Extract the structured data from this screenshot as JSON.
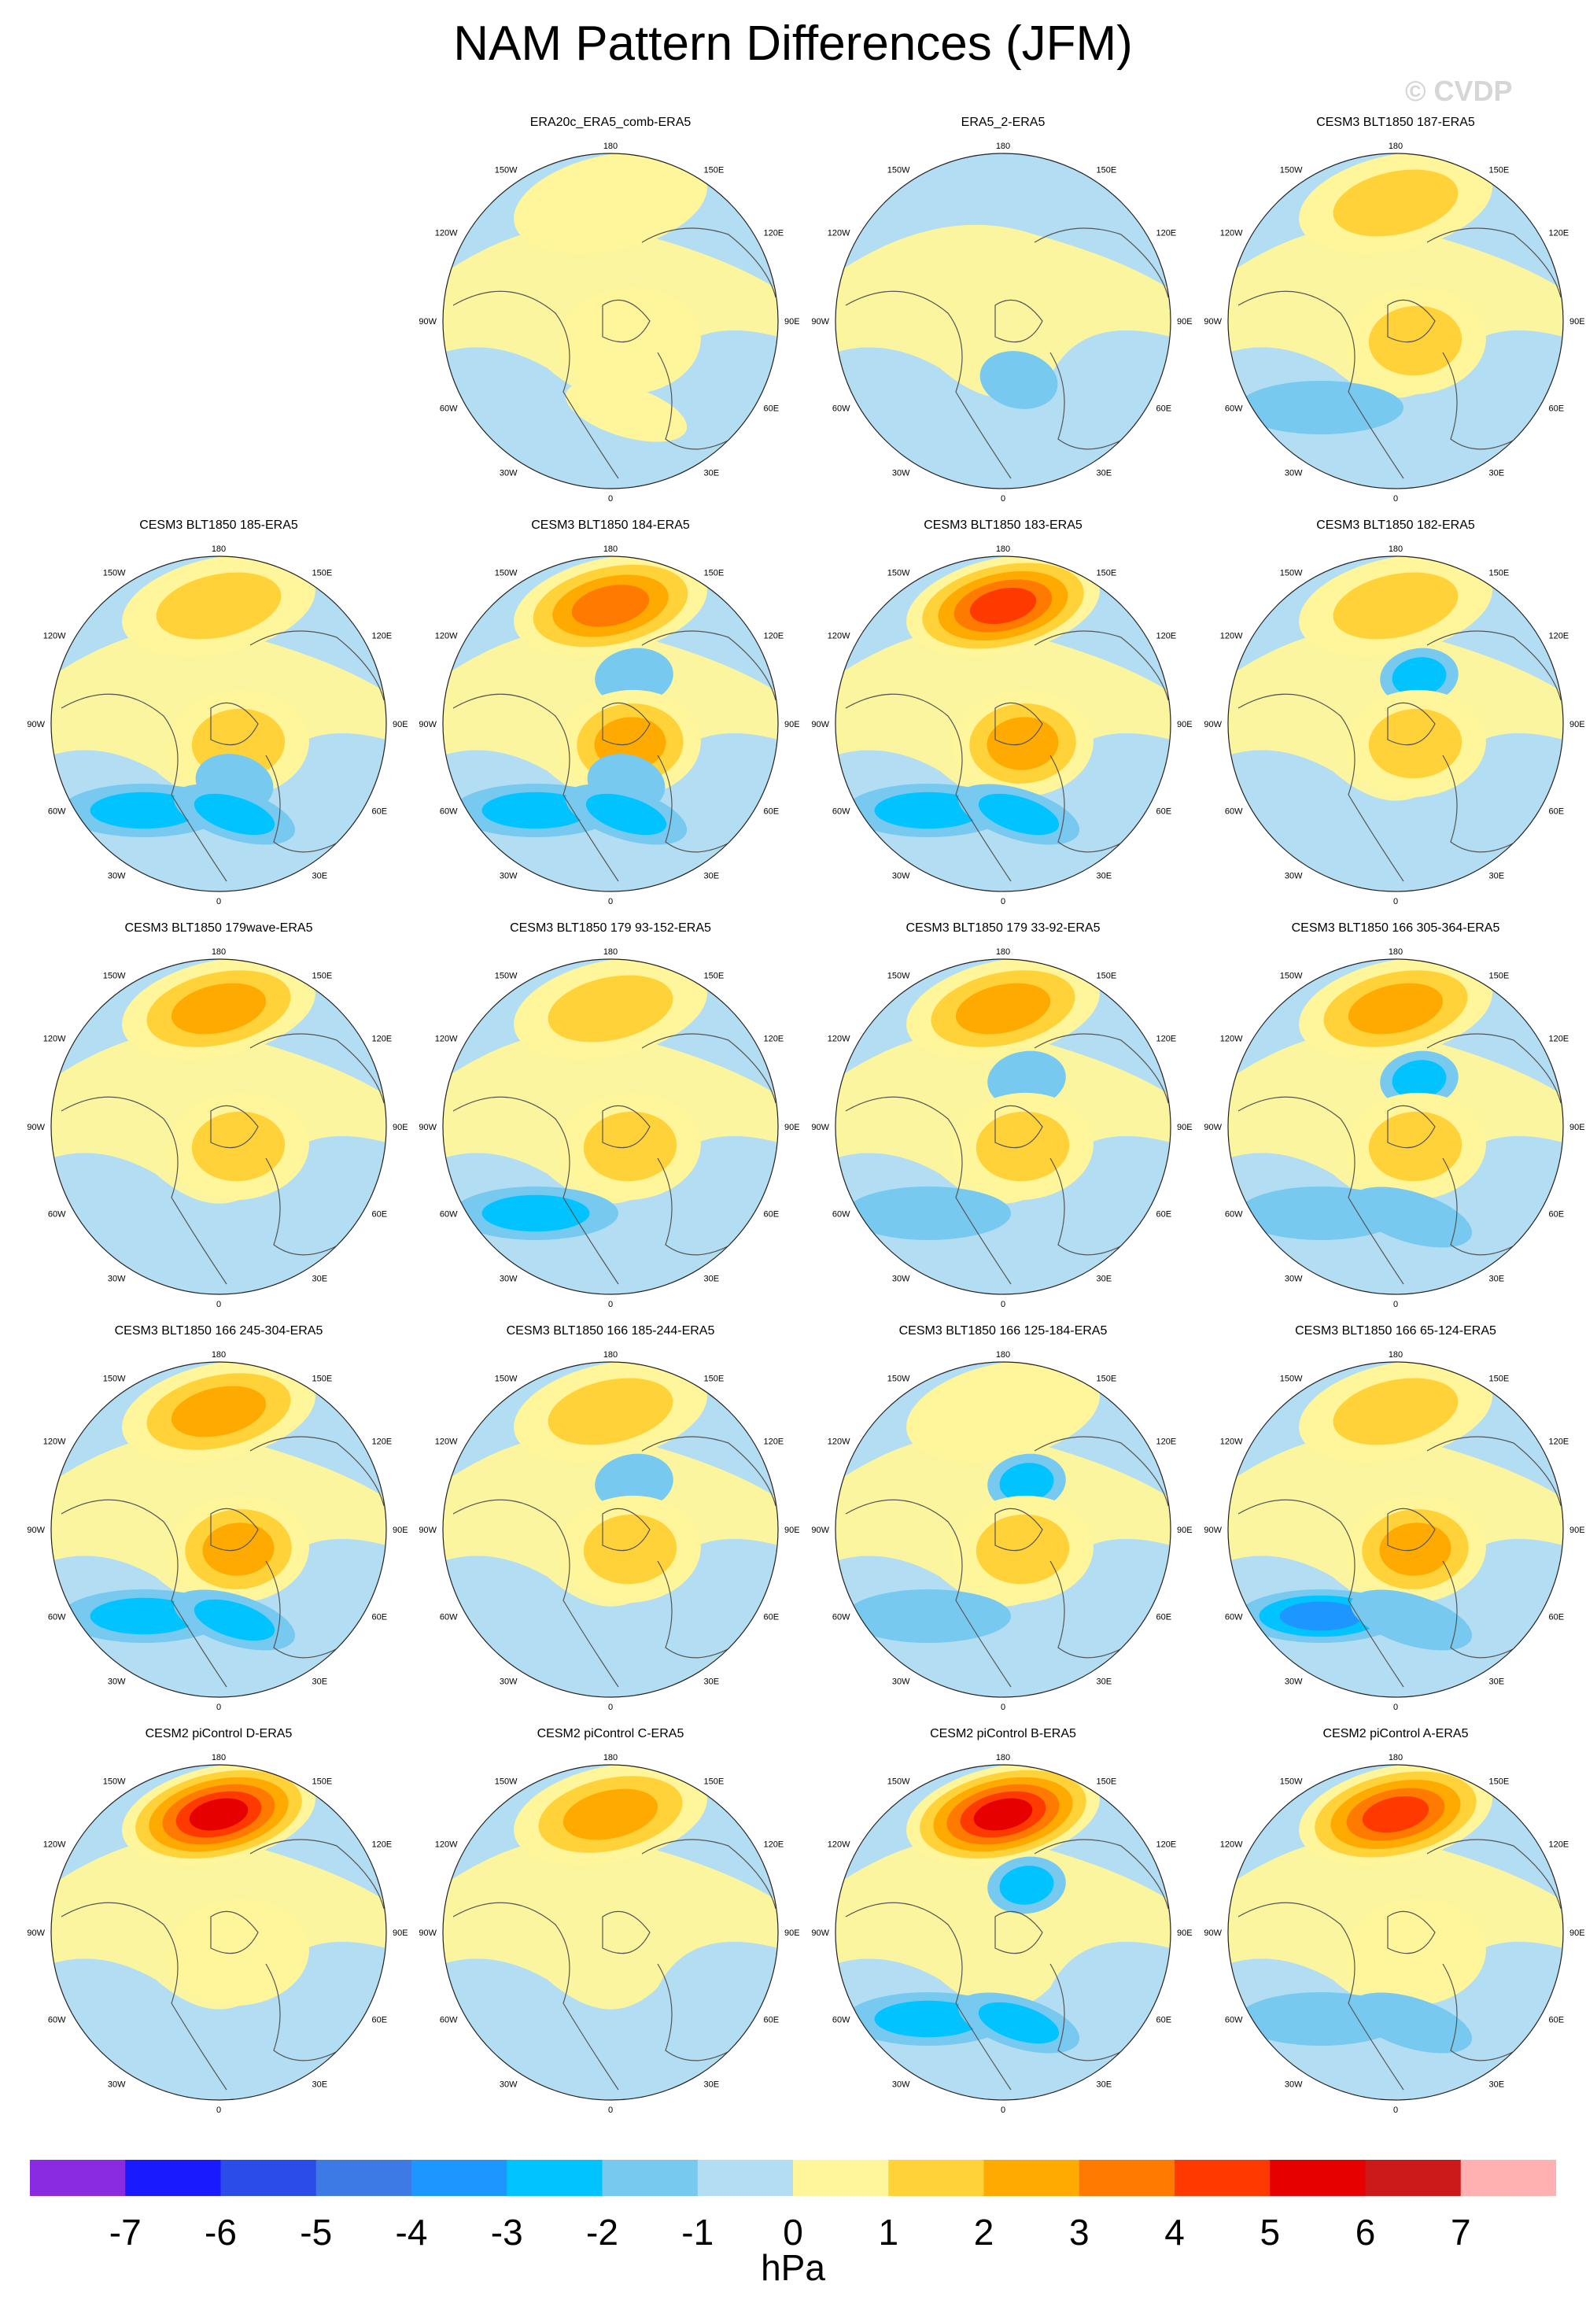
{
  "title": "NAM Pattern Differences (JFM)",
  "watermark": "© CVDP",
  "lon_labels": {
    "top": "180",
    "bottom": "0",
    "left": "90W",
    "right": "90E",
    "upper_left_outer": "150W",
    "upper_left_inner": "120W",
    "upper_right_outer": "150E",
    "upper_right_inner": "120E",
    "lower_left_inner": "60W",
    "lower_left_outer": "30W",
    "lower_right_inner": "60E",
    "lower_right_outer": "30E"
  },
  "panels": [
    {
      "title": "ERA20c_ERA5_comb-ERA5",
      "row": 0,
      "col": 1,
      "pattern": [
        1,
        1,
        0,
        0,
        1,
        0,
        0,
        1,
        0
      ]
    },
    {
      "title": "ERA5_2-ERA5",
      "row": 0,
      "col": 2,
      "pattern": [
        0,
        0,
        0,
        0,
        0,
        -1,
        0,
        0,
        0
      ]
    },
    {
      "title": "CESM3 BLT1850 187-ERA5",
      "row": 0,
      "col": 3,
      "pattern": [
        2,
        0,
        0,
        0,
        2,
        0,
        -1,
        0,
        0
      ]
    },
    {
      "title": "CESM3 BLT1850 185-ERA5",
      "row": 1,
      "col": 0,
      "pattern": [
        2,
        0,
        0,
        0,
        2,
        -1,
        -2,
        -2,
        0
      ]
    },
    {
      "title": "CESM3 BLT1850 184-ERA5",
      "row": 1,
      "col": 1,
      "pattern": [
        4,
        0,
        -1,
        0,
        3,
        -1,
        -2,
        -2,
        0
      ]
    },
    {
      "title": "CESM3 BLT1850 183-ERA5",
      "row": 1,
      "col": 2,
      "pattern": [
        5,
        0,
        0,
        0,
        3,
        0,
        -2,
        -2,
        0
      ]
    },
    {
      "title": "CESM3 BLT1850 182-ERA5",
      "row": 1,
      "col": 3,
      "pattern": [
        2,
        0,
        -2,
        0,
        2,
        0,
        0,
        0,
        0
      ]
    },
    {
      "title": "CESM3 BLT1850 179wave-ERA5",
      "row": 2,
      "col": 0,
      "pattern": [
        3,
        0,
        0,
        0,
        2,
        0,
        0,
        0,
        0
      ]
    },
    {
      "title": "CESM3 BLT1850 179 93-152-ERA5",
      "row": 2,
      "col": 1,
      "pattern": [
        2,
        0,
        0,
        0,
        2,
        0,
        -2,
        0,
        0
      ]
    },
    {
      "title": "CESM3 BLT1850 179 33-92-ERA5",
      "row": 2,
      "col": 2,
      "pattern": [
        3,
        0,
        -1,
        0,
        2,
        0,
        -1,
        0,
        0
      ]
    },
    {
      "title": "CESM3 BLT1850 166 305-364-ERA5",
      "row": 2,
      "col": 3,
      "pattern": [
        3,
        0,
        -2,
        0,
        2,
        0,
        -1,
        -1,
        0
      ]
    },
    {
      "title": "CESM3 BLT1850 166 245-304-ERA5",
      "row": 3,
      "col": 0,
      "pattern": [
        3,
        0,
        0,
        0,
        3,
        0,
        -2,
        -2,
        0
      ]
    },
    {
      "title": "CESM3 BLT1850 166 185-244-ERA5",
      "row": 3,
      "col": 1,
      "pattern": [
        2,
        0,
        -1,
        0,
        2,
        0,
        0,
        0,
        0
      ]
    },
    {
      "title": "CESM3 BLT1850 166 125-184-ERA5",
      "row": 3,
      "col": 2,
      "pattern": [
        1,
        0,
        -2,
        0,
        2,
        0,
        -1,
        0,
        0
      ]
    },
    {
      "title": "CESM3 BLT1850 166 65-124-ERA5",
      "row": 3,
      "col": 3,
      "pattern": [
        2,
        0,
        0,
        0,
        3,
        0,
        -3,
        -1,
        0
      ]
    },
    {
      "title": "CESM2 piControl D-ERA5",
      "row": 4,
      "col": 0,
      "pattern": [
        6,
        0,
        0,
        0,
        1,
        0,
        0,
        0,
        0
      ]
    },
    {
      "title": "CESM2 piControl C-ERA5",
      "row": 4,
      "col": 1,
      "pattern": [
        3,
        0,
        0,
        0,
        0,
        0,
        0,
        0,
        0
      ]
    },
    {
      "title": "CESM2 piControl B-ERA5",
      "row": 4,
      "col": 2,
      "pattern": [
        6,
        0,
        -2,
        0,
        0,
        0,
        -2,
        -2,
        0
      ]
    },
    {
      "title": "CESM2 piControl A-ERA5",
      "row": 4,
      "col": 3,
      "pattern": [
        5,
        0,
        0,
        0,
        1,
        0,
        -1,
        -1,
        0
      ]
    }
  ],
  "colorbar": {
    "unit": "hPa",
    "labels": [
      "-7",
      "-6",
      "-5",
      "-4",
      "-3",
      "-2",
      "-1",
      "0",
      "1",
      "2",
      "3",
      "4",
      "5",
      "6",
      "7"
    ],
    "colors": [
      "#8a2be2",
      "#1a1aff",
      "#2b4ce8",
      "#3d7ae6",
      "#1e96ff",
      "#00c3ff",
      "#77c9f0",
      "#b3ddf2",
      "#fff59a",
      "#ffd23a",
      "#ffaa00",
      "#ff7a00",
      "#ff3a00",
      "#e60000",
      "#cc1a1a",
      "#ffb0b0"
    ],
    "level_colors": {
      "-6": "#1a1aff",
      "-5": "#2b4ce8",
      "-4": "#3d7ae6",
      "-3": "#1e96ff",
      "-2": "#00c3ff",
      "-1": "#77c9f0",
      "0": "#b3ddf2",
      "1": "#fff59a",
      "2": "#ffd23a",
      "3": "#ffaa00",
      "4": "#ff7a00",
      "5": "#ff3a00",
      "6": "#e60000"
    }
  }
}
